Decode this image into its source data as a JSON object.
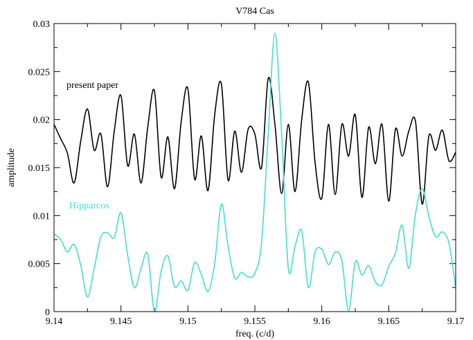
{
  "chart_data": {
    "type": "line",
    "title": "V784 Cas",
    "xlabel": "freq. (c/d)",
    "ylabel": "amplitude",
    "xlim": [
      9.14,
      9.17
    ],
    "ylim": [
      0,
      0.03
    ],
    "xticks": [
      "9.14",
      "9.145",
      "9.15",
      "9.155",
      "9.16",
      "9.165",
      "9.17"
    ],
    "yticks": [
      "0",
      "0.005",
      "0.01",
      "0.015",
      "0.02",
      "0.025",
      "0.03"
    ],
    "annotations": [
      {
        "text": "present paper",
        "series": "present paper",
        "color": "#000000"
      },
      {
        "text": "Hipparcos",
        "series": "Hipparcos",
        "color": "#40e0d0"
      }
    ],
    "series": [
      {
        "name": "present paper",
        "color": "#000000",
        "x": [
          9.14,
          9.1405,
          9.141,
          9.1415,
          9.142,
          9.1425,
          9.143,
          9.1435,
          9.144,
          9.1445,
          9.145,
          9.1455,
          9.146,
          9.1465,
          9.147,
          9.1475,
          9.148,
          9.1485,
          9.149,
          9.1495,
          9.15,
          9.1505,
          9.151,
          9.1515,
          9.152,
          9.1525,
          9.153,
          9.1535,
          9.154,
          9.1545,
          9.155,
          9.1555,
          9.156,
          9.1565,
          9.157,
          9.1575,
          9.158,
          9.1585,
          9.159,
          9.1595,
          9.16,
          9.1605,
          9.161,
          9.1615,
          9.162,
          9.1625,
          9.163,
          9.1635,
          9.164,
          9.1645,
          9.165,
          9.1655,
          9.166,
          9.1665,
          9.167,
          9.1675,
          9.168,
          9.1685,
          9.169,
          9.1695,
          9.17
        ],
        "y": [
          0.0195,
          0.018,
          0.0165,
          0.0134,
          0.0178,
          0.0211,
          0.0168,
          0.0185,
          0.013,
          0.0188,
          0.0225,
          0.0152,
          0.0185,
          0.0134,
          0.0192,
          0.023,
          0.014,
          0.0182,
          0.0128,
          0.0198,
          0.0232,
          0.0138,
          0.0183,
          0.0126,
          0.0205,
          0.0237,
          0.0137,
          0.0188,
          0.0145,
          0.019,
          0.0185,
          0.015,
          0.0243,
          0.0195,
          0.0123,
          0.0195,
          0.0125,
          0.02,
          0.0239,
          0.0155,
          0.0118,
          0.0195,
          0.0122,
          0.0195,
          0.0162,
          0.0205,
          0.0119,
          0.0192,
          0.0154,
          0.0195,
          0.0115,
          0.019,
          0.0162,
          0.0188,
          0.0198,
          0.0112,
          0.0183,
          0.0168,
          0.0189,
          0.0157,
          0.0166
        ]
      },
      {
        "name": "Hipparcos",
        "color": "#40e0d0",
        "x": [
          9.14,
          9.1405,
          9.141,
          9.1415,
          9.142,
          9.1425,
          9.143,
          9.1435,
          9.144,
          9.1445,
          9.145,
          9.1455,
          9.146,
          9.1465,
          9.147,
          9.1475,
          9.148,
          9.1485,
          9.149,
          9.1495,
          9.15,
          9.1505,
          9.151,
          9.1515,
          9.152,
          9.1525,
          9.153,
          9.1535,
          9.154,
          9.1545,
          9.155,
          9.1555,
          9.156,
          9.1565,
          9.157,
          9.1575,
          9.158,
          9.1585,
          9.159,
          9.1595,
          9.16,
          9.1605,
          9.161,
          9.1615,
          9.162,
          9.1625,
          9.163,
          9.1635,
          9.164,
          9.1645,
          9.165,
          9.1655,
          9.166,
          9.1665,
          9.167,
          9.1675,
          9.168,
          9.1685,
          9.169,
          9.1695,
          9.17
        ],
        "y": [
          0.0081,
          0.0075,
          0.0062,
          0.007,
          0.0048,
          0.0015,
          0.0045,
          0.0078,
          0.0082,
          0.0077,
          0.0103,
          0.0059,
          0.0025,
          0.0045,
          0.006,
          0.0,
          0.0042,
          0.0058,
          0.0026,
          0.0032,
          0.0022,
          0.0051,
          0.0039,
          0.0021,
          0.005,
          0.0112,
          0.0068,
          0.0035,
          0.0041,
          0.0036,
          0.004,
          0.0072,
          0.0185,
          0.029,
          0.0185,
          0.0045,
          0.0068,
          0.0084,
          0.0025,
          0.0062,
          0.0065,
          0.0049,
          0.0062,
          0.0053,
          0.0001,
          0.0052,
          0.0038,
          0.0048,
          0.0031,
          0.0028,
          0.0047,
          0.0061,
          0.009,
          0.0045,
          0.0102,
          0.0128,
          0.0099,
          0.0078,
          0.0083,
          0.0071,
          0.0025
        ]
      }
    ]
  }
}
